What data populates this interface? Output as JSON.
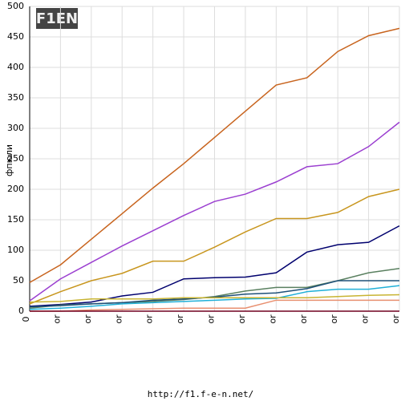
{
  "logo": "F1EN",
  "footer": "http://f1.f-e-n.net/",
  "chart_data": {
    "type": "line",
    "ylabel": "фпюли",
    "categories": [
      "0",
      "or",
      "or",
      "or",
      "or",
      "or",
      "or",
      "or",
      "or",
      "or",
      "or",
      "or",
      "or"
    ],
    "ylim": [
      0,
      500
    ],
    "yticks": [
      0,
      50,
      100,
      150,
      200,
      250,
      300,
      350,
      400,
      450,
      500
    ],
    "grid": true,
    "series": [
      {
        "color": "#c8641e",
        "values": [
          47,
          76,
          118,
          160,
          202,
          242,
          285,
          328,
          371,
          383,
          426,
          452,
          464
        ]
      },
      {
        "color": "#9b3fd0",
        "values": [
          17,
          53,
          80,
          107,
          132,
          157,
          180,
          192,
          212,
          237,
          242,
          270,
          310
        ]
      },
      {
        "color": "#c8961e",
        "values": [
          12,
          32,
          50,
          62,
          82,
          82,
          105,
          130,
          152,
          152,
          162,
          188,
          200
        ]
      },
      {
        "color": "#00006e",
        "values": [
          8,
          11,
          15,
          25,
          31,
          53,
          55,
          56,
          63,
          97,
          109,
          113,
          140
        ]
      },
      {
        "color": "#5a8060",
        "values": [
          5,
          10,
          12,
          14,
          16,
          19,
          24,
          33,
          39,
          39,
          50,
          63,
          70
        ]
      },
      {
        "color": "#1e5078",
        "values": [
          7,
          9,
          12,
          14,
          18,
          20,
          23,
          28,
          30,
          37,
          50,
          50,
          50
        ]
      },
      {
        "color": "#20b0d8",
        "values": [
          3,
          5,
          8,
          12,
          14,
          16,
          18,
          20,
          21,
          32,
          36,
          36,
          42
        ]
      },
      {
        "color": "#c8b432",
        "values": [
          15,
          16,
          20,
          20,
          20,
          22,
          22,
          22,
          22,
          22,
          24,
          26,
          27
        ]
      },
      {
        "color": "#e89070",
        "values": [
          0,
          0,
          2,
          3,
          4,
          5,
          5,
          5,
          18,
          18,
          18,
          18,
          18
        ]
      },
      {
        "color": "#700020",
        "values": [
          0,
          0,
          0,
          0,
          0,
          0,
          0,
          0,
          0,
          0,
          0,
          0,
          0
        ]
      }
    ]
  }
}
